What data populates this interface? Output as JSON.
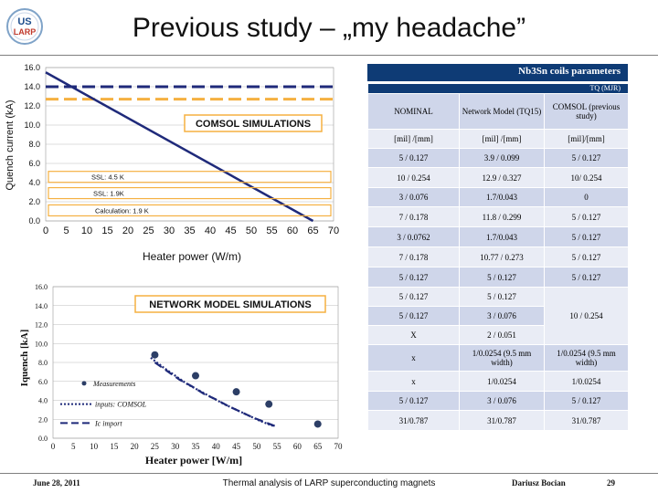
{
  "slide": {
    "title": "Previous study – „my headache”",
    "logo_lines": [
      "US",
      "LARP"
    ]
  },
  "chart_top": {
    "type": "line",
    "title": "COMSOL SIMULATIONS",
    "xlabel": "Heater power (W/m)",
    "ylabel": "Quench current (kA)",
    "xlim": [
      0,
      70
    ],
    "ylim": [
      0,
      16
    ],
    "xticks": [
      "0",
      "5",
      "10",
      "15",
      "20",
      "25",
      "30",
      "35",
      "40",
      "45",
      "50",
      "55",
      "60",
      "65",
      "70"
    ],
    "yticks": [
      "0.0",
      "2.0",
      "4.0",
      "6.0",
      "8.0",
      "10.0",
      "12.0",
      "14.0",
      "16.0"
    ],
    "series": [
      {
        "kind": "line",
        "color": "#1f2a7a",
        "x": [
          0,
          65
        ],
        "y": [
          15.5,
          0.0
        ]
      }
    ],
    "hlines": [
      {
        "y": 14.0,
        "color": "#1f2a7a",
        "style": "dash"
      },
      {
        "y": 12.7,
        "color": "#f5b041",
        "style": "dash"
      }
    ],
    "callouts": [
      {
        "label": "SSL: 4.5 K",
        "y": 4.6
      },
      {
        "label": "SSL: 1.9K",
        "y": 2.9
      },
      {
        "label": "Calculation: 1.9 K",
        "y": 1.1
      }
    ]
  },
  "chart_bottom": {
    "type": "scatter",
    "title": "NETWORK MODEL SIMULATIONS",
    "xlabel": "Heater power [W/m]",
    "ylabel": "Iquench [kA]",
    "xlim": [
      0,
      70
    ],
    "ylim": [
      0,
      16
    ],
    "xticks": [
      "0",
      "5",
      "10",
      "15",
      "20",
      "25",
      "30",
      "35",
      "40",
      "45",
      "50",
      "55",
      "60",
      "65",
      "70"
    ],
    "yticks": [
      "0.0",
      "2.0",
      "4.0",
      "6.0",
      "8.0",
      "10.0",
      "12.0",
      "14.0",
      "16.0"
    ],
    "measurements": {
      "x": [
        25,
        35,
        45,
        53,
        65
      ],
      "y": [
        8.8,
        6.6,
        4.9,
        3.6,
        1.5
      ]
    },
    "dashed_series": [
      {
        "x": [
          24,
          27,
          30,
          33,
          36,
          39,
          42,
          45,
          48,
          51,
          54
        ],
        "y": [
          8.5,
          7.5,
          6.6,
          5.7,
          5.0,
          4.3,
          3.6,
          3.0,
          2.4,
          1.8,
          1.3
        ]
      },
      {
        "x": [
          25,
          28,
          31,
          34,
          37,
          40,
          43,
          46,
          49,
          52,
          55
        ],
        "y": [
          8.0,
          7.1,
          6.2,
          5.5,
          4.7,
          4.1,
          3.4,
          2.8,
          2.2,
          1.7,
          1.2
        ]
      }
    ],
    "legend": [
      {
        "label": "Measurements",
        "marker": "dot"
      },
      {
        "label": "inputs: COMSOL",
        "marker": "dash"
      },
      {
        "label": "Ic import",
        "marker": "dash"
      }
    ]
  },
  "table": {
    "header": "Nb3Sn coils parameters",
    "band": "TQ (MJR)",
    "columns": [
      "NOMINAL",
      "Network Model (TQ15)",
      "COMSOL (previous study)"
    ],
    "units": [
      "[mil] /[mm]",
      "[mil] /[mm]",
      "[mil]/[mm]"
    ],
    "rows": [
      [
        "5 / 0.127",
        "3.9 / 0.099",
        "5 / 0.127"
      ],
      [
        "10 / 0.254",
        "12.9 / 0.327",
        "10/ 0.254"
      ],
      [
        "3 / 0.076",
        "1.7/0.043",
        "0"
      ],
      [
        "7 / 0.178",
        "11.8 / 0.299",
        "5 / 0.127"
      ],
      [
        "3 / 0.0762",
        "1.7/0.043",
        "5 / 0.127"
      ],
      [
        "7 / 0.178",
        "10.77 / 0.273",
        "5 / 0.127"
      ],
      [
        "5 / 0.127",
        "5 / 0.127",
        "5 / 0.127"
      ],
      [
        "5 / 0.127",
        "5 / 0.127",
        ""
      ],
      [
        "5 / 0.127",
        "3 / 0.076",
        "10 / 0.254"
      ],
      [
        "X",
        "2 / 0.051",
        ""
      ],
      [
        "x",
        "1/0.0254 (9.5 mm width)",
        "1/0.0254 (9.5 mm width)"
      ],
      [
        "x",
        "1/0.0254",
        "1/0.0254"
      ],
      [
        "5 / 0.127",
        "3 / 0.076",
        "5 / 0.127"
      ],
      [
        "31/0.787",
        "31/0.787",
        "31/0.787"
      ]
    ]
  },
  "footer": {
    "date": "June 28, 2011",
    "center": "Thermal analysis of LARP superconducting magnets",
    "author": "Dariusz Bocian",
    "page": "29"
  }
}
